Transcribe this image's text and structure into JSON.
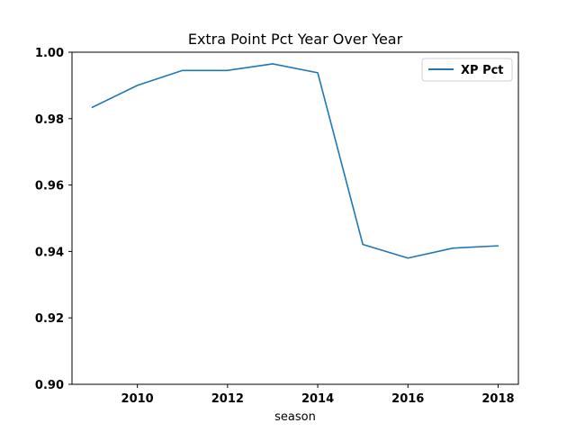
{
  "chart_data": {
    "type": "line",
    "title": "Extra Point Pct Year Over Year",
    "xlabel": "season",
    "ylabel": "",
    "x": [
      2009,
      2010,
      2011,
      2012,
      2013,
      2014,
      2015,
      2016,
      2017,
      2018
    ],
    "series": [
      {
        "name": "XP Pct",
        "color": "#1f77b4",
        "values": [
          0.9834,
          0.99,
          0.9945,
          0.9945,
          0.9965,
          0.9938,
          0.9421,
          0.938,
          0.941,
          0.9417
        ]
      }
    ],
    "xlim": [
      2008.55,
      2018.45
    ],
    "ylim": [
      0.9,
      1.0
    ],
    "xticks": [
      2010,
      2012,
      2014,
      2016,
      2018
    ],
    "yticks": [
      0.9,
      0.92,
      0.94,
      0.96,
      0.98,
      1.0
    ],
    "ytick_labels": [
      "0.90",
      "0.92",
      "0.94",
      "0.96",
      "0.98",
      "1.00"
    ],
    "grid": false,
    "legend": "top-right"
  }
}
